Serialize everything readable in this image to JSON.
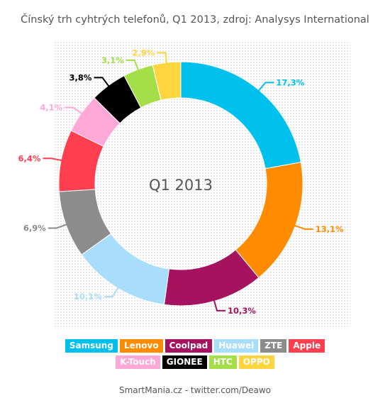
{
  "title": "Čínský trh cyhtrých telefonů, Q1 2013, zdroj: Analysys International",
  "footer": "SmartMania.cz - twitter.com/Deawo",
  "chart_data": {
    "type": "donut",
    "center_label": "Q1 2013",
    "slices": [
      {
        "name": "Samsung",
        "value": 17.3,
        "label": "17,3%",
        "color": "#00c0ee"
      },
      {
        "name": "Lenovo",
        "value": 13.1,
        "label": "13,1%",
        "color": "#ff8c00"
      },
      {
        "name": "Coolpad",
        "value": 10.3,
        "label": "10,3%",
        "color": "#a5125f"
      },
      {
        "name": "Huawei",
        "value": 10.1,
        "label": "10,1%",
        "color": "#a8ddfb"
      },
      {
        "name": "ZTE",
        "value": 6.9,
        "label": "6,9%",
        "color": "#8c8c8c"
      },
      {
        "name": "Apple",
        "value": 6.4,
        "label": "6,4%",
        "color": "#ff3f4f"
      },
      {
        "name": "K-Touch",
        "value": 4.1,
        "label": "4,1%",
        "color": "#ffa7d6"
      },
      {
        "name": "GIONEE",
        "value": 3.8,
        "label": "3,8%",
        "color": "#000000"
      },
      {
        "name": "HTC",
        "value": 3.1,
        "label": "3,1%",
        "color": "#a4df4a"
      },
      {
        "name": "OPPO",
        "value": 2.9,
        "label": "2,9%",
        "color": "#ffd53d"
      }
    ]
  }
}
